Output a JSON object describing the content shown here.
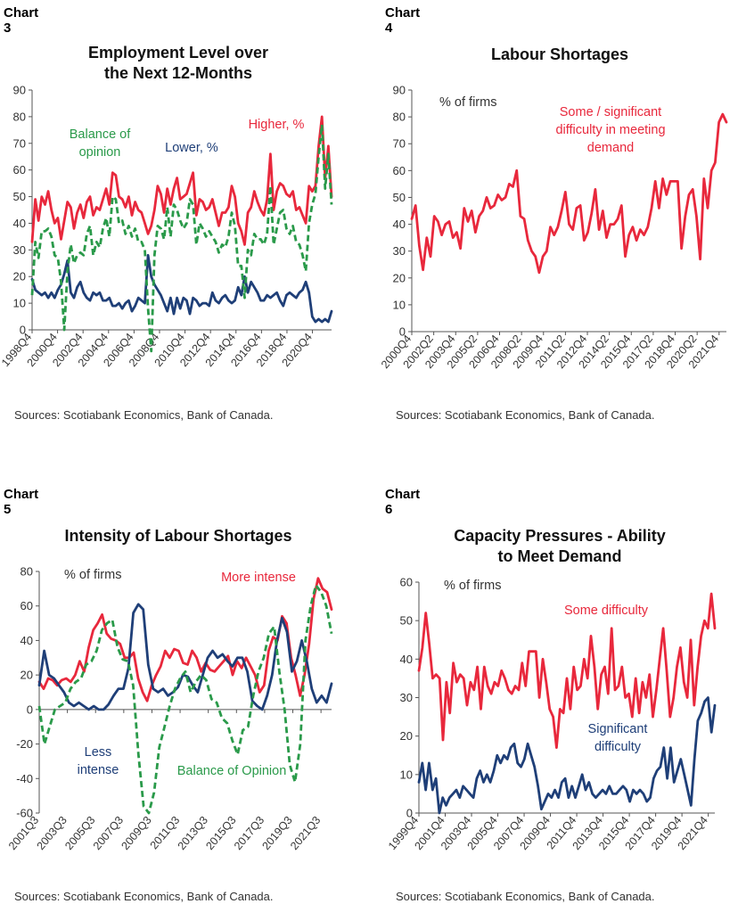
{
  "charts": [
    {
      "label": "Chart 3",
      "title_lines": [
        "Employment Level over",
        "the Next 12-Months"
      ],
      "source": "Sources: Scotiabank Economics, Bank of Canada."
    },
    {
      "label": "Chart 4",
      "title_lines": [
        "Labour Shortages"
      ],
      "source": "Sources: Scotiabank Economics, Bank of Canada."
    },
    {
      "label": "Chart 5",
      "title_lines": [
        "Intensity of Labour Shortages"
      ],
      "source": "Sources: Scotiabank Economics, Bank of Canada."
    },
    {
      "label": "Chart 6",
      "title_lines": [
        "Capacity Pressures - Ability",
        "to Meet Demand"
      ],
      "source": "Sources: Scotiabank Economics, Bank of Canada."
    }
  ],
  "colors": {
    "red": "#e8283c",
    "navy": "#1f3f78",
    "green": "#2a9a4a"
  },
  "chart_data": [
    {
      "type": "line",
      "title": "Employment Level over the Next 12-Months",
      "ylim": [
        0,
        90
      ],
      "yticks": [
        0,
        10,
        20,
        30,
        40,
        50,
        60,
        70,
        80,
        90
      ],
      "x_start": "1998Q4",
      "x_end": "2022Q2",
      "xticks": [
        "1998Q4",
        "2000Q4",
        "2002Q4",
        "2004Q4",
        "2006Q4",
        "2008Q4",
        "2010Q4",
        "2012Q4",
        "2014Q4",
        "2016Q4",
        "2018Q4",
        "2020Q4"
      ],
      "series": [
        {
          "name": "Higher, %",
          "color": "red",
          "dash": false,
          "values": [
            33,
            49,
            41,
            50,
            47,
            52,
            45,
            40,
            42,
            34,
            41,
            48,
            46,
            38,
            44,
            47,
            42,
            48,
            50,
            43,
            46,
            45,
            49,
            53,
            47,
            59,
            58,
            50,
            49,
            46,
            50,
            43,
            48,
            45,
            44,
            40,
            36,
            39,
            45,
            54,
            51,
            44,
            53,
            47,
            53,
            57,
            49,
            50,
            51,
            55,
            59,
            43,
            49,
            48,
            45,
            46,
            49,
            44,
            39,
            44,
            44,
            46,
            54,
            50,
            40,
            37,
            32,
            44,
            46,
            52,
            48,
            45,
            43,
            49,
            66,
            45,
            52,
            55,
            54,
            51,
            50,
            52,
            45,
            46,
            43,
            40,
            54,
            52,
            54,
            69,
            80,
            57,
            69,
            50
          ]
        },
        {
          "name": "Lower, %",
          "color": "navy",
          "dash": false,
          "values": [
            19,
            15,
            14,
            13,
            14,
            12,
            14,
            12,
            15,
            17,
            21,
            26,
            14,
            12,
            16,
            18,
            14,
            12,
            11,
            14,
            13,
            14,
            11,
            11,
            12,
            9,
            9,
            10,
            8,
            10,
            11,
            7,
            9,
            12,
            11,
            10,
            28,
            20,
            17,
            15,
            13,
            10,
            7,
            12,
            6,
            12,
            8,
            12,
            11,
            6,
            12,
            11,
            9,
            10,
            10,
            9,
            14,
            11,
            10,
            12,
            13,
            11,
            10,
            11,
            16,
            13,
            20,
            14,
            18,
            16,
            14,
            11,
            11,
            13,
            12,
            13,
            14,
            11,
            9,
            13,
            14,
            13,
            12,
            14,
            15,
            18,
            14,
            5,
            3,
            4,
            3,
            4,
            3,
            7
          ]
        },
        {
          "name": "Balance of opinion",
          "color": "green",
          "dash": true,
          "values": [
            13,
            33,
            27,
            37,
            37,
            38,
            35,
            28,
            27,
            18,
            0,
            22,
            32,
            25,
            28,
            29,
            28,
            36,
            39,
            28,
            33,
            31,
            38,
            42,
            35,
            50,
            49,
            40,
            41,
            36,
            39,
            35,
            38,
            33,
            33,
            30,
            8,
            -8,
            28,
            39,
            38,
            34,
            46,
            35,
            47,
            45,
            41,
            38,
            40,
            49,
            47,
            32,
            40,
            38,
            35,
            37,
            35,
            33,
            29,
            32,
            31,
            35,
            44,
            39,
            24,
            24,
            12,
            30,
            28,
            36,
            34,
            34,
            32,
            36,
            54,
            32,
            38,
            44,
            45,
            38,
            36,
            39,
            33,
            32,
            28,
            22,
            40,
            47,
            51,
            65,
            77,
            53,
            66,
            47
          ]
        }
      ],
      "annotations": [
        "Balance of opinion",
        "Lower, %",
        "Higher, %"
      ]
    },
    {
      "type": "line",
      "title": "Labour Shortages",
      "ylim": [
        0,
        90
      ],
      "yticks": [
        0,
        10,
        20,
        30,
        40,
        50,
        60,
        70,
        80,
        90
      ],
      "ylabel": "% of firms",
      "x_start": "2000Q4",
      "x_end": "2022Q2",
      "xticks": [
        "2000Q4",
        "2002Q2",
        "2003Q4",
        "2005Q2",
        "2006Q4",
        "2008Q2",
        "2009Q4",
        "2011Q2",
        "2012Q4",
        "2014Q2",
        "2015Q4",
        "2017Q2",
        "2018Q4",
        "2020Q2",
        "2021Q4"
      ],
      "series": [
        {
          "name": "Some / significant difficulty in meeting demand",
          "color": "red",
          "dash": false,
          "values": [
            42,
            47,
            32,
            23,
            35,
            28,
            43,
            41,
            36,
            40,
            41,
            35,
            37,
            31,
            46,
            41,
            45,
            37,
            43,
            45,
            50,
            46,
            47,
            51,
            49,
            50,
            55,
            54,
            60,
            43,
            42,
            34,
            30,
            28,
            22,
            28,
            30,
            39,
            36,
            39,
            45,
            52,
            40,
            38,
            46,
            47,
            34,
            37,
            44,
            53,
            38,
            45,
            35,
            40,
            40,
            42,
            47,
            28,
            36,
            39,
            34,
            38,
            36,
            39,
            46,
            56,
            46,
            57,
            51,
            56,
            56,
            56,
            31,
            43,
            51,
            53,
            43,
            27,
            57,
            46,
            60,
            63,
            78,
            81,
            78
          ]
        }
      ],
      "annotations": [
        "% of firms",
        "Some / significant difficulty in meeting demand"
      ]
    },
    {
      "type": "line",
      "title": "Intensity of Labour Shortages",
      "ylim": [
        -60,
        80
      ],
      "yticks": [
        -60,
        -40,
        -20,
        0,
        20,
        40,
        60,
        80
      ],
      "ylabel": "% of firms",
      "x_start": "2001Q3",
      "x_end": "2022Q2",
      "xticks": [
        "2001Q3",
        "2003Q3",
        "2005Q3",
        "2007Q3",
        "2009Q3",
        "2011Q3",
        "2013Q3",
        "2015Q3",
        "2017Q3",
        "2019Q3",
        "2021Q3"
      ],
      "series": [
        {
          "name": "More intense",
          "color": "red",
          "dash": false,
          "values": [
            16,
            12,
            18,
            17,
            14,
            17,
            18,
            16,
            20,
            28,
            22,
            36,
            46,
            50,
            55,
            44,
            41,
            40,
            38,
            30,
            30,
            33,
            18,
            10,
            5,
            14,
            20,
            25,
            34,
            30,
            35,
            34,
            27,
            26,
            34,
            30,
            22,
            27,
            23,
            22,
            25,
            28,
            31,
            20,
            28,
            24,
            30,
            25,
            20,
            10,
            14,
            34,
            42,
            40,
            54,
            50,
            30,
            20,
            8,
            20,
            38,
            64,
            76,
            70,
            68,
            58
          ]
        },
        {
          "name": "Less intense",
          "color": "navy",
          "dash": false,
          "values": [
            14,
            34,
            20,
            18,
            14,
            10,
            4,
            2,
            4,
            2,
            0,
            2,
            0,
            0,
            3,
            8,
            12,
            12,
            24,
            56,
            61,
            58,
            26,
            12,
            10,
            12,
            8,
            10,
            13,
            20,
            19,
            14,
            10,
            20,
            30,
            34,
            30,
            32,
            28,
            25,
            30,
            30,
            22,
            5,
            2,
            0,
            8,
            20,
            40,
            53,
            45,
            22,
            28,
            40,
            28,
            12,
            4,
            8,
            4,
            15
          ]
        },
        {
          "name": "Balance of Opinion",
          "color": "green",
          "dash": true,
          "values": [
            2,
            -20,
            -10,
            0,
            2,
            4,
            12,
            16,
            18,
            26,
            28,
            34,
            46,
            50,
            52,
            36,
            29,
            28,
            14,
            -26,
            -56,
            -60,
            -48,
            -22,
            -10,
            2,
            12,
            18,
            22,
            10,
            16,
            20,
            17,
            6,
            4,
            -5,
            -8,
            -18,
            -26,
            -12,
            -10,
            8,
            22,
            30,
            44,
            48,
            22,
            0,
            -32,
            -42,
            -20,
            40,
            60,
            72,
            68,
            60,
            44
          ]
        }
      ],
      "annotations": [
        "% of firms",
        "More intense",
        "Less intense",
        "Balance of Opinion"
      ]
    },
    {
      "type": "line",
      "title": "Capacity Pressures - Ability to Meet Demand",
      "ylim": [
        0,
        60
      ],
      "yticks": [
        0,
        10,
        20,
        30,
        40,
        50,
        60
      ],
      "ylabel": "% of firms",
      "x_start": "1999Q4",
      "x_end": "2022Q2",
      "xticks": [
        "1999Q4",
        "2001Q4",
        "2003Q4",
        "2005Q4",
        "2007Q4",
        "2009Q4",
        "2011Q4",
        "2013Q4",
        "2015Q4",
        "2017Q4",
        "2019Q4",
        "2021Q4"
      ],
      "series": [
        {
          "name": "Some difficulty",
          "color": "red",
          "dash": false,
          "values": [
            37,
            43,
            52,
            44,
            35,
            36,
            35,
            19,
            34,
            26,
            39,
            34,
            36,
            35,
            28,
            34,
            32,
            38,
            27,
            38,
            33,
            31,
            34,
            33,
            37,
            35,
            32,
            31,
            33,
            32,
            39,
            33,
            42,
            42,
            42,
            30,
            40,
            34,
            27,
            25,
            17,
            27,
            26,
            35,
            27,
            38,
            32,
            33,
            40,
            35,
            46,
            38,
            27,
            36,
            38,
            31,
            48,
            32,
            33,
            38,
            30,
            31,
            25,
            35,
            26,
            34,
            30,
            36,
            25,
            32,
            40,
            48,
            37,
            25,
            30,
            38,
            43,
            34,
            30,
            45,
            28,
            38,
            46,
            50,
            48,
            57,
            48
          ]
        },
        {
          "name": "Significant difficulty",
          "color": "navy",
          "dash": false,
          "values": [
            8,
            13,
            6,
            13,
            6,
            9,
            0,
            4,
            2,
            4,
            5,
            6,
            4,
            7,
            6,
            5,
            4,
            9,
            11,
            8,
            10,
            8,
            11,
            15,
            13,
            15,
            14,
            17,
            18,
            13,
            12,
            14,
            18,
            15,
            12,
            7,
            1,
            3,
            5,
            4,
            6,
            4,
            8,
            9,
            4,
            7,
            4,
            7,
            10,
            6,
            8,
            5,
            4,
            5,
            6,
            5,
            7,
            5,
            5,
            6,
            7,
            6,
            3,
            6,
            5,
            6,
            5,
            3,
            4,
            9,
            11,
            12,
            17,
            9,
            17,
            8,
            11,
            14,
            10,
            6,
            2,
            14,
            24,
            26,
            29,
            30,
            21,
            28
          ]
        }
      ],
      "annotations": [
        "% of firms",
        "Some difficulty",
        "Significant difficulty"
      ]
    }
  ]
}
